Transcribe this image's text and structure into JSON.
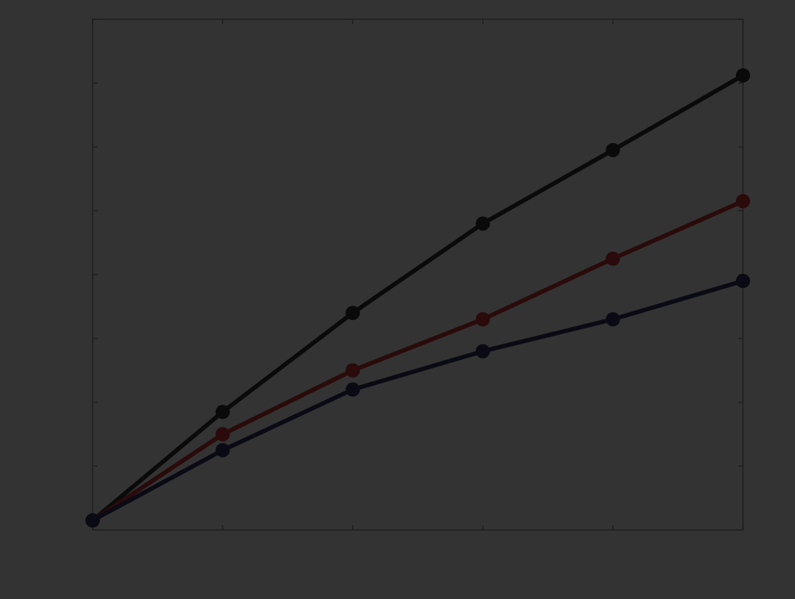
{
  "chart_data": {
    "type": "line",
    "x": [
      0,
      1,
      2,
      3,
      4,
      5
    ],
    "x_tick_labels": [
      "",
      "",
      "",
      "",
      "",
      ""
    ],
    "y_tick_labels": [
      "",
      "",
      "",
      "",
      "",
      "",
      "",
      "",
      ""
    ],
    "xlim": [
      0,
      5
    ],
    "ylim": [
      0,
      8
    ],
    "xlabel": "",
    "ylabel": "",
    "title": "",
    "grid": false,
    "series": [
      {
        "color": "#0a0a0a",
        "values": [
          0.15,
          1.85,
          3.4,
          4.8,
          5.95,
          7.12
        ]
      },
      {
        "color": "#2a0a0a",
        "values": [
          0.15,
          1.5,
          2.5,
          3.3,
          4.25,
          5.15
        ]
      },
      {
        "color": "#0a0a14",
        "values": [
          0.15,
          1.25,
          2.2,
          2.8,
          3.3,
          3.9
        ]
      }
    ]
  }
}
